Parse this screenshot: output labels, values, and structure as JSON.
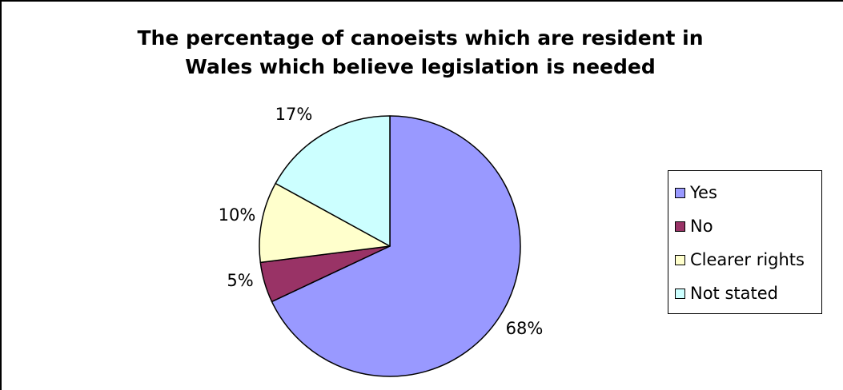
{
  "chart_data": {
    "type": "pie",
    "title_lines": [
      "The percentage of canoeists which are resident in",
      "Wales which believe legislation is needed"
    ],
    "series": [
      {
        "name": "Yes",
        "value": 68,
        "label": "68%",
        "color": "#9999ff"
      },
      {
        "name": "No",
        "value": 5,
        "label": "5%",
        "color": "#993366"
      },
      {
        "name": "Clearer rights",
        "value": 10,
        "label": "10%",
        "color": "#ffffcc"
      },
      {
        "name": "Not stated",
        "value": 17,
        "label": "17%",
        "color": "#ccffff"
      }
    ],
    "legend_position": "right"
  }
}
